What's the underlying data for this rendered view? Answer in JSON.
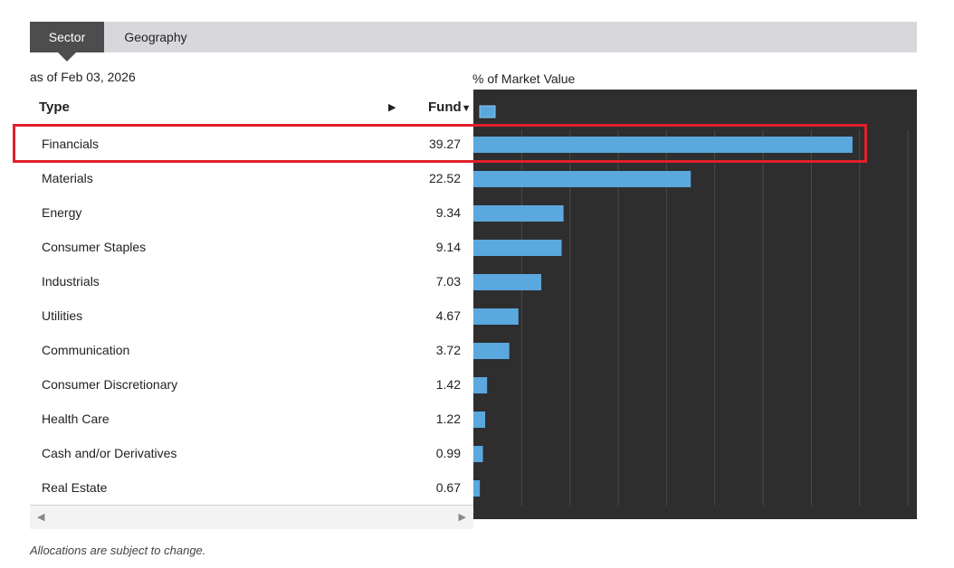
{
  "tabs": [
    {
      "label": "Sector",
      "active": true
    },
    {
      "label": "Geography",
      "active": false
    }
  ],
  "as_of": "as of Feb 03, 2026",
  "chart_label": "% of Market Value",
  "table": {
    "headers": {
      "type": "Type",
      "fund": "Fund",
      "sort_arrow": "▼",
      "expand_arrow": "▶"
    },
    "rows": [
      {
        "name": "Financials",
        "value": "39.27"
      },
      {
        "name": "Materials",
        "value": "22.52"
      },
      {
        "name": "Energy",
        "value": "9.34"
      },
      {
        "name": "Consumer Staples",
        "value": "9.14"
      },
      {
        "name": "Industrials",
        "value": "7.03"
      },
      {
        "name": "Utilities",
        "value": "4.67"
      },
      {
        "name": "Communication",
        "value": "3.72"
      },
      {
        "name": "Consumer Discretionary",
        "value": "1.42"
      },
      {
        "name": "Health Care",
        "value": "1.22"
      },
      {
        "name": "Cash and/or Derivatives",
        "value": "0.99"
      },
      {
        "name": "Real Estate",
        "value": "0.67"
      }
    ],
    "scroll_left": "◀",
    "scroll_right": "▶"
  },
  "chart_data": {
    "type": "bar",
    "orientation": "horizontal",
    "categories": [
      "Financials",
      "Materials",
      "Energy",
      "Consumer Staples",
      "Industrials",
      "Utilities",
      "Communication",
      "Consumer Discretionary",
      "Health Care",
      "Cash and/or Derivatives",
      "Real Estate"
    ],
    "values": [
      39.27,
      22.52,
      9.34,
      9.14,
      7.03,
      4.67,
      3.72,
      1.42,
      1.22,
      0.99,
      0.67
    ],
    "xlim": [
      0,
      45
    ],
    "grid": true,
    "bar_color": "#5aa8de",
    "background": "#2e2e2e"
  },
  "highlighted_row": "Financials",
  "highlight_color": "#e0202a",
  "footnote": "Allocations are subject to change."
}
